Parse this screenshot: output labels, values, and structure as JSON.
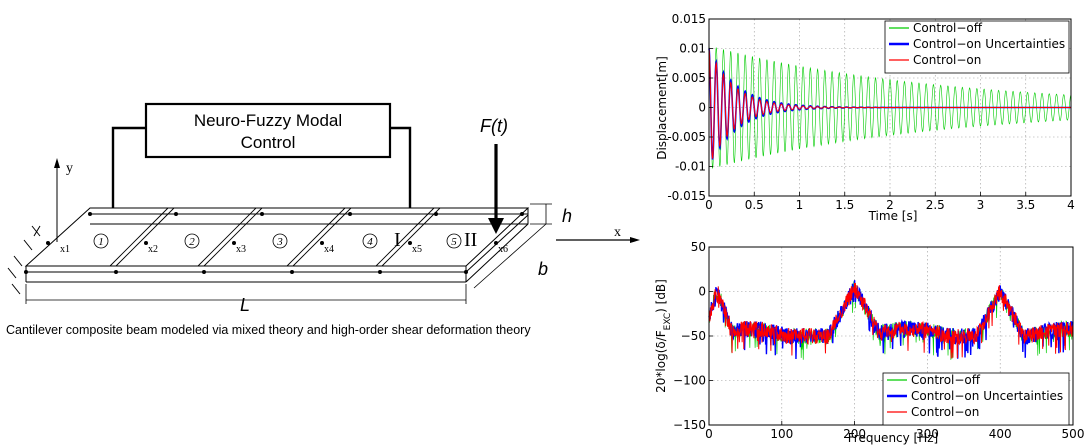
{
  "beam": {
    "controller_label_line1": "Neuro-Fuzzy Modal",
    "controller_label_line2": "Control",
    "force_label": "F(t)",
    "y_axis_label": "y",
    "x_axis_label": "x",
    "height_label": "h",
    "width_label": "b",
    "length_label": "L",
    "node_labels": [
      "x1",
      "x2",
      "x3",
      "x4",
      "x5",
      "x6"
    ],
    "element_labels": [
      "1",
      "2",
      "3",
      "4",
      "5"
    ],
    "section_marks": [
      "I",
      "II"
    ],
    "caption": "Cantilever composite beam modeled via mixed theory and high-order shear deformation theory"
  },
  "chart_data": [
    {
      "type": "line",
      "xlabel": "Time [s]",
      "ylabel": "Displacement[m]",
      "xlim": [
        0,
        4
      ],
      "ylim": [
        -0.015,
        0.015
      ],
      "xticks": [
        "0",
        "0.5",
        "1",
        "1.5",
        "2",
        "2.5",
        "3",
        "3.5",
        "4"
      ],
      "yticks": [
        "0.015",
        "0.01",
        "0.005",
        "0",
        "-0.005",
        "-0.01",
        "-0.015"
      ],
      "grid": true,
      "legend": "top-right",
      "series": [
        {
          "name": "Control−off",
          "color": "#00cc00",
          "amplitude": 0.0105,
          "frequency_hz": 12.5,
          "decay_per_s": 0.4
        },
        {
          "name": "Control−on Uncertainties",
          "color": "#0000ff",
          "amplitude": 0.01,
          "frequency_hz": 12.5,
          "decay_per_s": 3.2
        },
        {
          "name": "Control−on",
          "color": "#ff0000",
          "amplitude": 0.01,
          "frequency_hz": 12.5,
          "decay_per_s": 3.6
        }
      ]
    },
    {
      "type": "line",
      "xlabel": "Frequency [Hz]",
      "ylabel": "20*log(δ/F",
      "ylabel_sub": "EXC",
      "ylabel_end": ") [dB]",
      "xlim": [
        0,
        500
      ],
      "ylim": [
        -150,
        50
      ],
      "xticks": [
        "0",
        "100",
        "200",
        "300",
        "400",
        "500"
      ],
      "yticks": [
        "50",
        "0",
        "−50",
        "−100",
        "−150"
      ],
      "grid": true,
      "legend": "bottom-right",
      "peaks_hz": [
        12,
        200,
        400
      ],
      "peak_levels_db": [
        0,
        5,
        0
      ],
      "baseline_db": -50,
      "series": [
        {
          "name": "Control−off",
          "color": "#00cc00"
        },
        {
          "name": "Control−on Uncertainties",
          "color": "#0000ff"
        },
        {
          "name": "Control−on",
          "color": "#ff0000"
        }
      ]
    }
  ]
}
